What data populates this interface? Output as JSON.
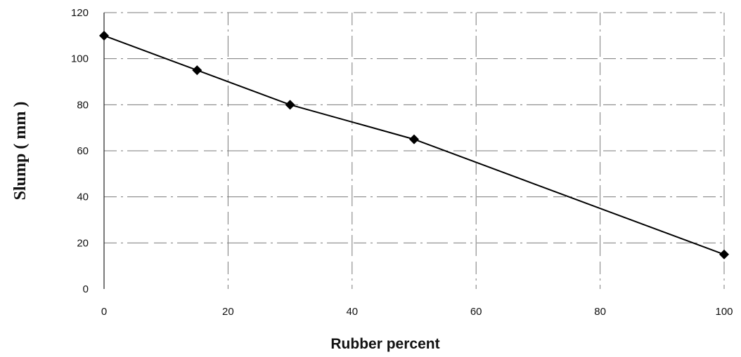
{
  "chart_data": {
    "type": "line",
    "xlabel": "Rubber percent",
    "ylabel": "Slump ( mm )",
    "xlim": [
      0,
      100
    ],
    "ylim": [
      0,
      120
    ],
    "x_ticks": [
      0,
      20,
      40,
      60,
      80,
      100
    ],
    "y_ticks": [
      0,
      20,
      40,
      60,
      80,
      100,
      120
    ],
    "x_tick_labels": [
      "0",
      "20",
      "40",
      "60",
      "80",
      "100"
    ],
    "y_tick_labels": [
      "0",
      "20",
      "40",
      "60",
      "80",
      "100",
      "120"
    ],
    "grid": true,
    "series": [
      {
        "x": [
          0,
          15,
          30,
          50,
          100
        ],
        "y": [
          110,
          95,
          80,
          65,
          15
        ],
        "marker": "diamond",
        "color": "#000000"
      }
    ]
  }
}
